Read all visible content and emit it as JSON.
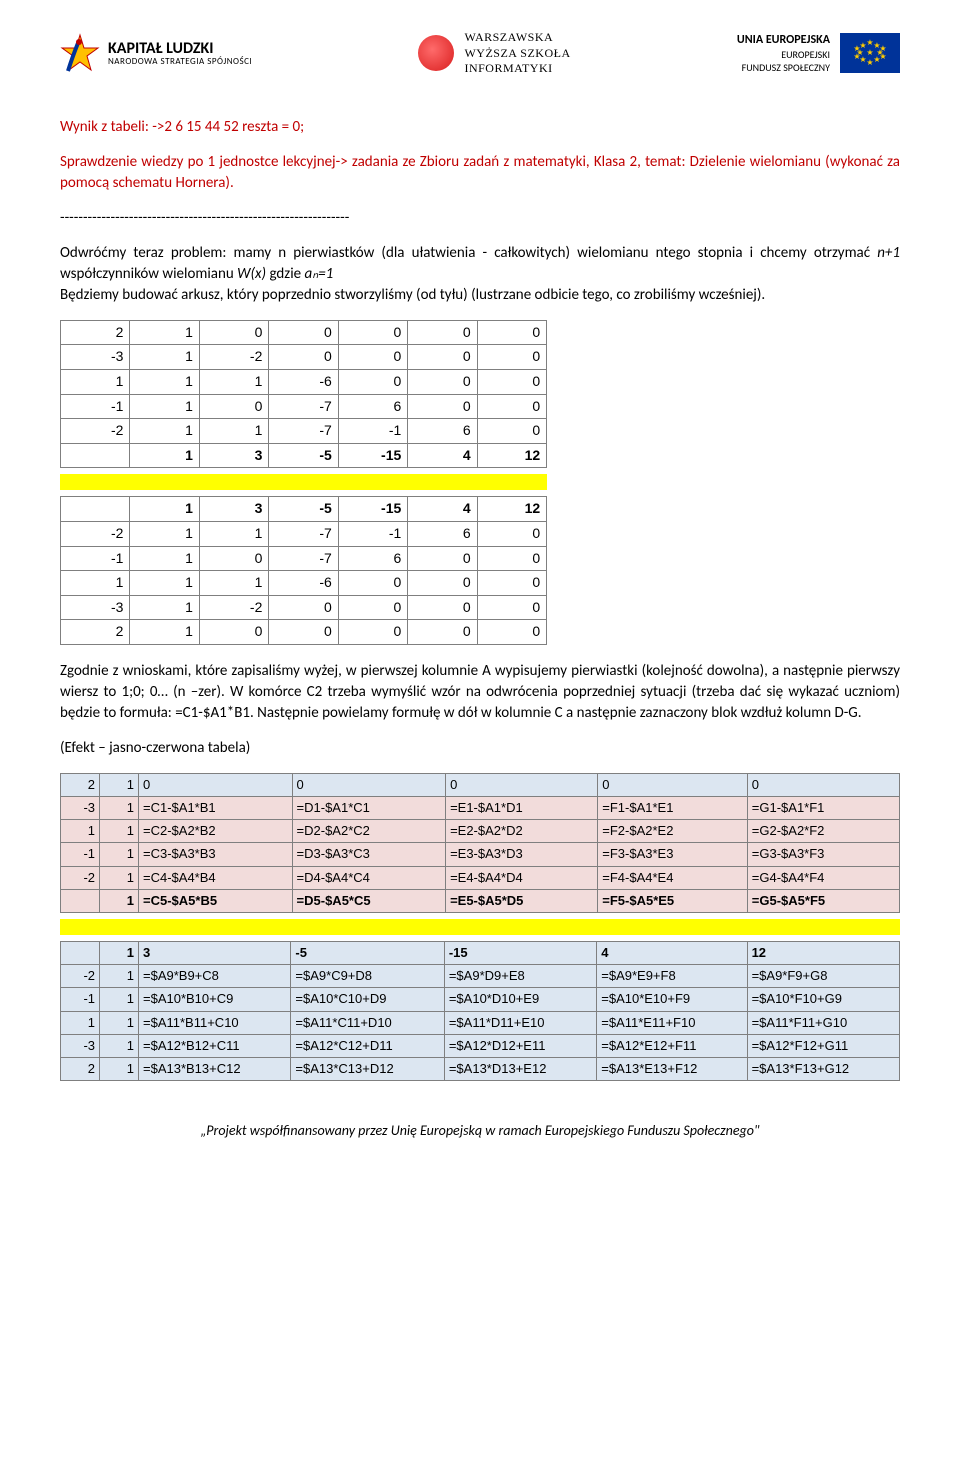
{
  "header": {
    "kapital": {
      "line1": "KAPITAŁ LUDZKI",
      "line2": "NARODOWA STRATEGIA SPÓJNOŚCI"
    },
    "wwsi": {
      "line1": "WARSZAWSKA",
      "line2": "WYŻSZA SZKOŁA",
      "line3": "INFORMATYKI"
    },
    "eu": {
      "line1": "UNIA EUROPEJSKA",
      "line2": "EUROPEJSKI",
      "line3": "FUNDUSZ SPOŁECZNY"
    }
  },
  "content": {
    "result_line": "Wynik z tabeli: ->2  6 15 44 52 reszta = 0;",
    "check_text": "Sprawdzenie wiedzy po 1 jednostce lekcyjnej-> zadania ze Zbioru zadań z matematyki, Klasa 2, temat: Dzielenie wielomianu (wykonać za pomocą schematu Hornera).",
    "separator": "---------------------------------------------------------------",
    "p1a": "Odwróćmy teraz problem: mamy n pierwiastków (dla ułatwienia - całkowitych) wielomianu ntego stopnia i chcemy otrzymać ",
    "p1b": "n+1",
    "p1c": " współczynników wielomianu ",
    "p1d": "W(x)",
    "p1e": " gdzie ",
    "p1f": "aₙ=1",
    "p2": "Będziemy budować arkusz, który poprzednio stworzyliśmy (od tyłu) (lustrzane odbicie tego, co zrobiliśmy wcześniej).",
    "p3": "Zgodnie z wnioskami, które zapisaliśmy wyżej, w pierwszej kolumnie A wypisujemy pierwiastki (kolejność dowolna), a następnie pierwszy wiersz to 1;0; 0… (n –zer). W komórce C2 trzeba wymyślić wzór na odwrócenia poprzedniej sytuacji (trzeba dać się wykazać uczniom) będzie to formuła: =C1-$A1*B1. Następnie powielamy formułę w dół w kolumnie C a następnie zaznaczony blok wzdłuż kolumn D-G.",
    "effect": "(Efekt – jasno-czerwona tabela)"
  },
  "table1_top": [
    {
      "c": [
        "2",
        "1",
        "0",
        "0",
        "0",
        "0",
        "0"
      ]
    },
    {
      "c": [
        "-3",
        "1",
        "-2",
        "0",
        "0",
        "0",
        "0"
      ]
    },
    {
      "c": [
        "1",
        "1",
        "1",
        "-6",
        "0",
        "0",
        "0"
      ]
    },
    {
      "c": [
        "-1",
        "1",
        "0",
        "-7",
        "6",
        "0",
        "0"
      ]
    },
    {
      "c": [
        "-2",
        "1",
        "1",
        "-7",
        "-1",
        "6",
        "0"
      ]
    },
    {
      "c": [
        "",
        "1",
        "3",
        "-5",
        "-15",
        "4",
        "12"
      ],
      "bold": true
    }
  ],
  "table1_bottom": [
    {
      "c": [
        "",
        "1",
        "3",
        "-5",
        "-15",
        "4",
        "12"
      ],
      "bold": true
    },
    {
      "c": [
        "-2",
        "1",
        "1",
        "-7",
        "-1",
        "6",
        "0"
      ]
    },
    {
      "c": [
        "-1",
        "1",
        "0",
        "-7",
        "6",
        "0",
        "0"
      ]
    },
    {
      "c": [
        "1",
        "1",
        "1",
        "-6",
        "0",
        "0",
        "0"
      ]
    },
    {
      "c": [
        "-3",
        "1",
        "-2",
        "0",
        "0",
        "0",
        "0"
      ]
    },
    {
      "c": [
        "2",
        "1",
        "0",
        "0",
        "0",
        "0",
        "0"
      ]
    }
  ],
  "table2_top": [
    {
      "cls": "blue",
      "c": [
        "2",
        "1",
        "0",
        "0",
        "0",
        "0",
        "0"
      ]
    },
    {
      "cls": "pink",
      "c": [
        "-3",
        "1",
        "=C1-$A1*B1",
        "=D1-$A1*C1",
        "=E1-$A1*D1",
        "=F1-$A1*E1",
        "=G1-$A1*F1"
      ]
    },
    {
      "cls": "pink",
      "c": [
        "1",
        "1",
        "=C2-$A2*B2",
        "=D2-$A2*C2",
        "=E2-$A2*D2",
        "=F2-$A2*E2",
        "=G2-$A2*F2"
      ]
    },
    {
      "cls": "pink",
      "c": [
        "-1",
        "1",
        "=C3-$A3*B3",
        "=D3-$A3*C3",
        "=E3-$A3*D3",
        "=F3-$A3*E3",
        "=G3-$A3*F3"
      ]
    },
    {
      "cls": "pink",
      "c": [
        "-2",
        "1",
        "=C4-$A4*B4",
        "=D4-$A4*C4",
        "=E4-$A4*D4",
        "=F4-$A4*E4",
        "=G4-$A4*F4"
      ]
    },
    {
      "cls": "pink",
      "bold": true,
      "c": [
        "",
        "1",
        "=C5-$A5*B5",
        "=D5-$A5*C5",
        "=E5-$A5*D5",
        "=F5-$A5*E5",
        "=G5-$A5*F5"
      ]
    }
  ],
  "table2_bottom": [
    {
      "cls": "blue",
      "bold": true,
      "c": [
        "",
        "1",
        "3",
        "-5",
        "-15",
        "4",
        "12"
      ]
    },
    {
      "cls": "blue",
      "c": [
        "-2",
        "1",
        "=$A9*B9+C8",
        "=$A9*C9+D8",
        "=$A9*D9+E8",
        "=$A9*E9+F8",
        "=$A9*F9+G8"
      ]
    },
    {
      "cls": "blue",
      "c": [
        "-1",
        "1",
        "=$A10*B10+C9",
        "=$A10*C10+D9",
        "=$A10*D10+E9",
        "=$A10*E10+F9",
        "=$A10*F10+G9"
      ]
    },
    {
      "cls": "blue",
      "c": [
        "1",
        "1",
        "=$A11*B11+C10",
        "=$A11*C11+D10",
        "=$A11*D11+E10",
        "=$A11*E11+F10",
        "=$A11*F11+G10"
      ]
    },
    {
      "cls": "blue",
      "c": [
        "-3",
        "1",
        "=$A12*B12+C11",
        "=$A12*C12+D11",
        "=$A12*D12+E11",
        "=$A12*E12+F11",
        "=$A12*F12+G11"
      ]
    },
    {
      "cls": "blue",
      "c": [
        "2",
        "1",
        "=$A13*B13+C12",
        "=$A13*C13+D12",
        "=$A13*D13+E12",
        "=$A13*E13+F12",
        "=$A13*F13+G12"
      ]
    }
  ],
  "footer": "„Projekt współfinansowany przez Unię Europejską w ramach Europejskiego Funduszu Społecznego\""
}
